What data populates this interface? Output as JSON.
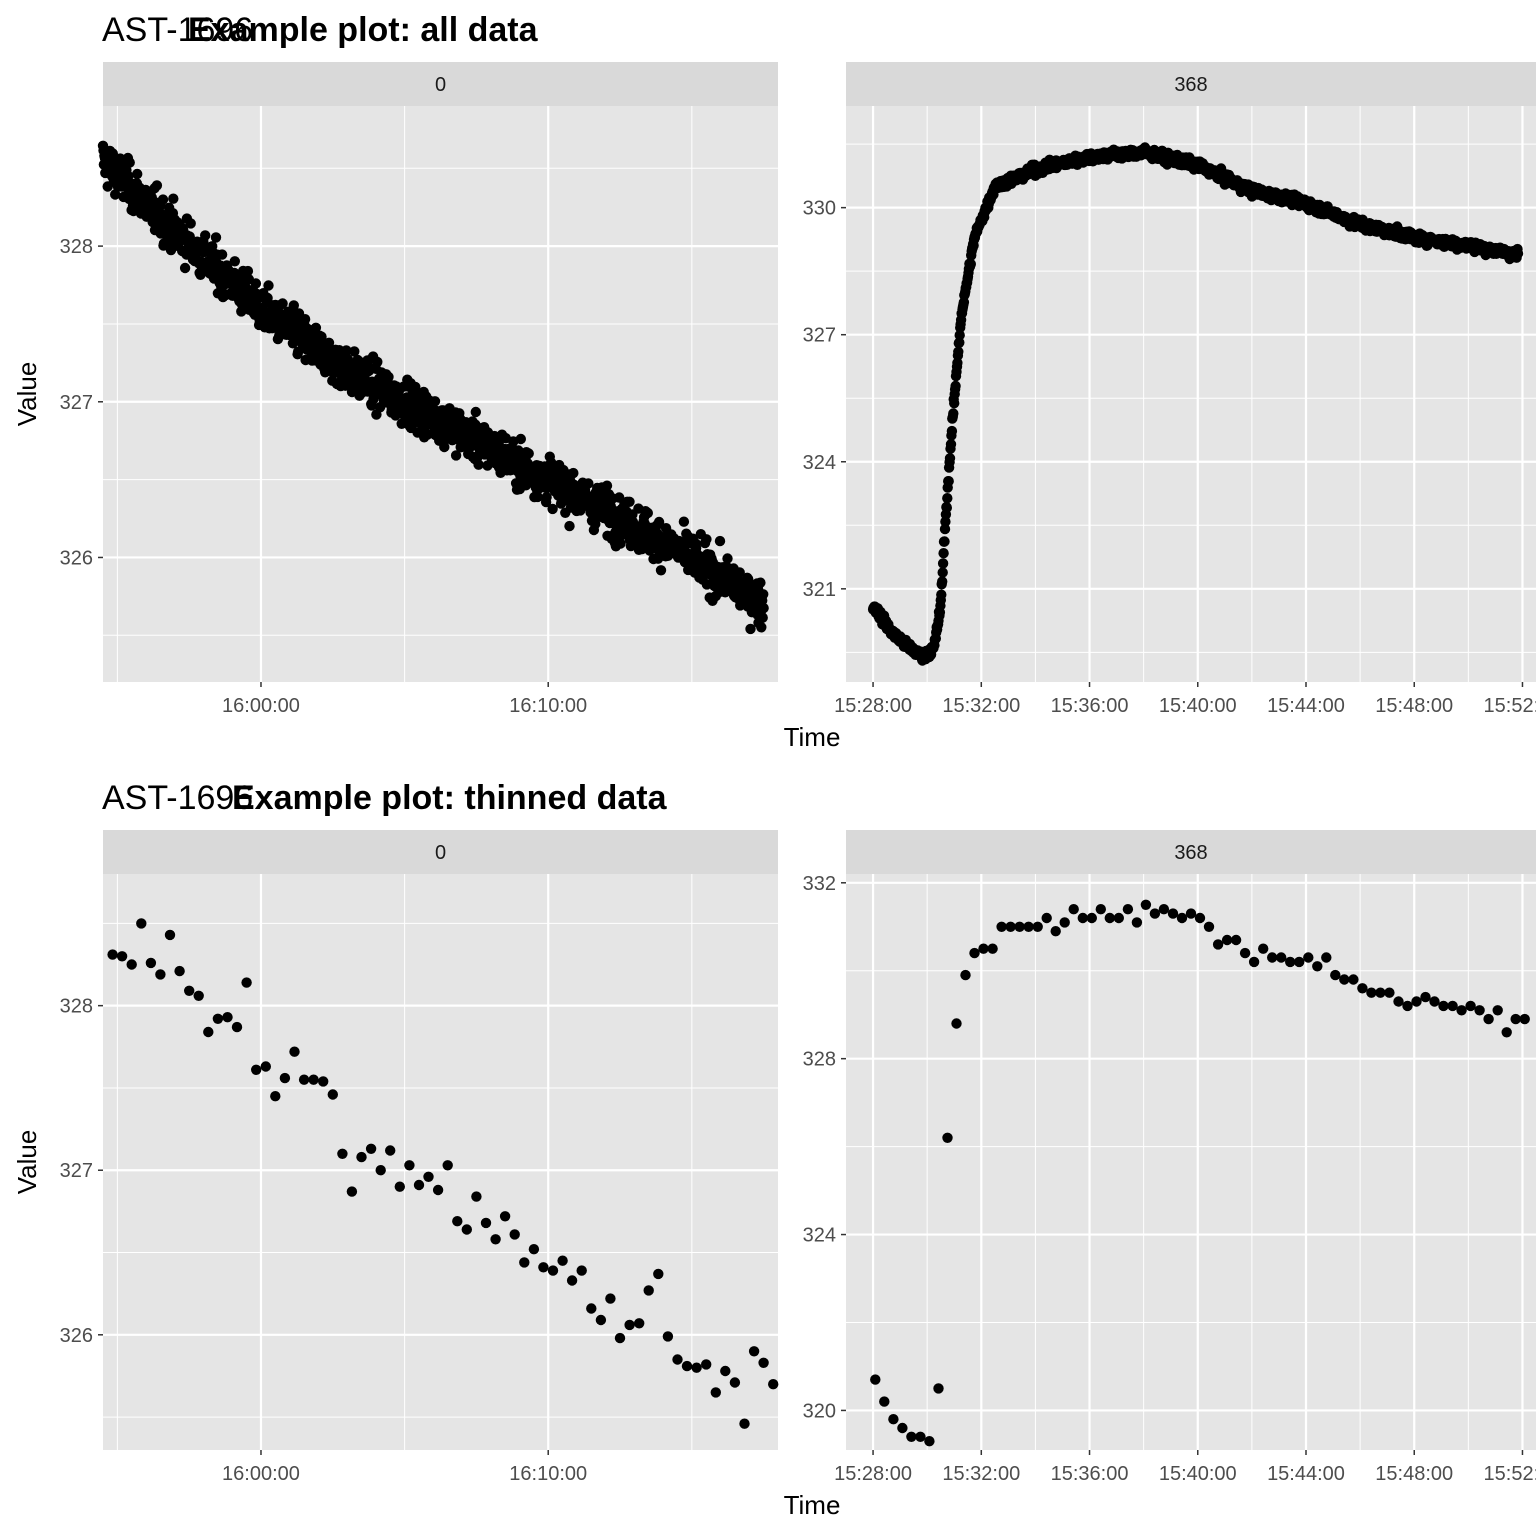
{
  "figure": {
    "title_top_prefix": "AST-1696",
    "title_top": "Example plot: all data",
    "title_bottom_prefix": "AST-1696",
    "title_bottom": "Example plot: thinned data",
    "ylabel": "Value",
    "xlabel": "Time"
  },
  "colors": {
    "panel_bg": "#e5e5e5",
    "strip_bg": "#d9d9d9",
    "grid": "#ffffff",
    "point": "#000000"
  },
  "chart_data": [
    {
      "type": "scatter",
      "title": "Example plot: all data",
      "facet": "0",
      "xlabel": "",
      "ylabel": "Value",
      "xlim": [
        "15:54:30",
        "16:18:00"
      ],
      "ylim": [
        325.2,
        328.9
      ],
      "x_ticks": [
        "16:00:00",
        "16:10:00"
      ],
      "y_ticks": [
        326,
        327,
        328
      ],
      "grid": true,
      "trend": [
        [
          "15:54:30",
          328.55
        ],
        [
          "15:57:00",
          328.1
        ],
        [
          "16:00:00",
          327.6
        ],
        [
          "16:03:00",
          327.2
        ],
        [
          "16:06:00",
          326.9
        ],
        [
          "16:09:00",
          326.6
        ],
        [
          "16:12:00",
          326.3
        ],
        [
          "16:15:00",
          326.0
        ],
        [
          "16:17:30",
          325.7
        ]
      ],
      "n_points": 1410,
      "noise": 0.15
    },
    {
      "type": "scatter",
      "title": "Example plot: all data",
      "facet": "368",
      "xlabel": "Time",
      "ylabel": "",
      "xlim": [
        "15:27:00",
        "15:52:30"
      ],
      "ylim": [
        318.8,
        332.4
      ],
      "x_ticks": [
        "15:28:00",
        "15:32:00",
        "15:36:00",
        "15:40:00",
        "15:44:00",
        "15:48:00",
        "15:52:00"
      ],
      "y_ticks": [
        321,
        324,
        327,
        330
      ],
      "grid": true,
      "trend": [
        [
          "15:28:00",
          320.6
        ],
        [
          "15:28:40",
          320.0
        ],
        [
          "15:29:20",
          319.6
        ],
        [
          "15:29:50",
          319.4
        ],
        [
          "15:30:15",
          319.6
        ],
        [
          "15:30:30",
          320.6
        ],
        [
          "15:30:40",
          322.5
        ],
        [
          "15:30:55",
          324.8
        ],
        [
          "15:31:15",
          327.4
        ],
        [
          "15:31:45",
          329.3
        ],
        [
          "15:32:30",
          330.5
        ],
        [
          "15:34:00",
          330.9
        ],
        [
          "15:36:00",
          331.2
        ],
        [
          "15:38:00",
          331.3
        ],
        [
          "15:40:00",
          331.0
        ],
        [
          "15:42:00",
          330.4
        ],
        [
          "15:44:00",
          330.1
        ],
        [
          "15:46:00",
          329.6
        ],
        [
          "15:48:00",
          329.3
        ],
        [
          "15:50:00",
          329.1
        ],
        [
          "15:51:50",
          328.9
        ]
      ],
      "n_points": 1400,
      "noise": 0.12
    },
    {
      "type": "scatter",
      "title": "Example plot: thinned data",
      "facet": "0",
      "xlabel": "",
      "ylabel": "Value",
      "xlim": [
        "15:54:30",
        "16:18:00"
      ],
      "ylim": [
        325.3,
        328.8
      ],
      "x_ticks": [
        "16:00:00",
        "16:10:00"
      ],
      "y_ticks": [
        326,
        327,
        328
      ],
      "grid": true,
      "points": [
        [
          "15:54:50",
          328.31
        ],
        [
          "15:55:10",
          328.3
        ],
        [
          "15:55:30",
          328.25
        ],
        [
          "15:55:50",
          328.5
        ],
        [
          "15:56:10",
          328.26
        ],
        [
          "15:56:30",
          328.19
        ],
        [
          "15:56:50",
          328.43
        ],
        [
          "15:57:10",
          328.21
        ],
        [
          "15:57:30",
          328.09
        ],
        [
          "15:57:50",
          328.06
        ],
        [
          "15:58:10",
          327.84
        ],
        [
          "15:58:30",
          327.92
        ],
        [
          "15:58:50",
          327.93
        ],
        [
          "15:59:10",
          327.87
        ],
        [
          "15:59:30",
          328.14
        ],
        [
          "15:59:50",
          327.61
        ],
        [
          "16:00:10",
          327.63
        ],
        [
          "16:00:30",
          327.45
        ],
        [
          "16:00:50",
          327.56
        ],
        [
          "16:01:10",
          327.72
        ],
        [
          "16:01:30",
          327.55
        ],
        [
          "16:01:50",
          327.55
        ],
        [
          "16:02:10",
          327.54
        ],
        [
          "16:02:30",
          327.46
        ],
        [
          "16:02:50",
          327.1
        ],
        [
          "16:03:10",
          326.87
        ],
        [
          "16:03:30",
          327.08
        ],
        [
          "16:03:50",
          327.13
        ],
        [
          "16:04:10",
          327.0
        ],
        [
          "16:04:30",
          327.12
        ],
        [
          "16:04:50",
          326.9
        ],
        [
          "16:05:10",
          327.03
        ],
        [
          "16:05:30",
          326.91
        ],
        [
          "16:05:50",
          326.96
        ],
        [
          "16:06:10",
          326.88
        ],
        [
          "16:06:30",
          327.03
        ],
        [
          "16:06:50",
          326.69
        ],
        [
          "16:07:10",
          326.64
        ],
        [
          "16:07:30",
          326.84
        ],
        [
          "16:07:50",
          326.68
        ],
        [
          "16:08:10",
          326.58
        ],
        [
          "16:08:30",
          326.72
        ],
        [
          "16:08:50",
          326.61
        ],
        [
          "16:09:10",
          326.44
        ],
        [
          "16:09:30",
          326.52
        ],
        [
          "16:09:50",
          326.41
        ],
        [
          "16:10:10",
          326.39
        ],
        [
          "16:10:30",
          326.45
        ],
        [
          "16:10:50",
          326.33
        ],
        [
          "16:11:10",
          326.39
        ],
        [
          "16:11:30",
          326.16
        ],
        [
          "16:11:50",
          326.09
        ],
        [
          "16:12:10",
          326.22
        ],
        [
          "16:12:30",
          325.98
        ],
        [
          "16:12:50",
          326.06
        ],
        [
          "16:13:10",
          326.07
        ],
        [
          "16:13:30",
          326.27
        ],
        [
          "16:13:50",
          326.37
        ],
        [
          "16:14:10",
          325.99
        ],
        [
          "16:14:30",
          325.85
        ],
        [
          "16:14:50",
          325.81
        ],
        [
          "16:15:10",
          325.8
        ],
        [
          "16:15:30",
          325.82
        ],
        [
          "16:15:50",
          325.65
        ],
        [
          "16:16:10",
          325.78
        ],
        [
          "16:16:30",
          325.71
        ],
        [
          "16:16:50",
          325.46
        ],
        [
          "16:17:10",
          325.9
        ],
        [
          "16:17:30",
          325.83
        ],
        [
          "16:17:50",
          325.7
        ]
      ]
    },
    {
      "type": "scatter",
      "title": "Example plot: thinned data",
      "facet": "368",
      "xlabel": "Time",
      "ylabel": "",
      "xlim": [
        "15:27:00",
        "15:52:30"
      ],
      "ylim": [
        319.1,
        332.2
      ],
      "x_ticks": [
        "15:28:00",
        "15:32:00",
        "15:36:00",
        "15:40:00",
        "15:44:00",
        "15:48:00",
        "15:52:00"
      ],
      "y_ticks": [
        320,
        324,
        328,
        332
      ],
      "grid": true,
      "points": [
        [
          "15:28:05",
          320.7
        ],
        [
          "15:28:25",
          320.2
        ],
        [
          "15:28:45",
          319.8
        ],
        [
          "15:29:05",
          319.6
        ],
        [
          "15:29:25",
          319.4
        ],
        [
          "15:29:45",
          319.4
        ],
        [
          "15:30:05",
          319.3
        ],
        [
          "15:30:25",
          320.5
        ],
        [
          "15:30:45",
          326.2
        ],
        [
          "15:31:05",
          328.8
        ],
        [
          "15:31:25",
          329.9
        ],
        [
          "15:31:45",
          330.4
        ],
        [
          "15:32:05",
          330.5
        ],
        [
          "15:32:25",
          330.5
        ],
        [
          "15:32:45",
          331.0
        ],
        [
          "15:33:05",
          331.0
        ],
        [
          "15:33:25",
          331.0
        ],
        [
          "15:33:45",
          331.0
        ],
        [
          "15:34:05",
          331.0
        ],
        [
          "15:34:25",
          331.2
        ],
        [
          "15:34:45",
          330.9
        ],
        [
          "15:35:05",
          331.1
        ],
        [
          "15:35:25",
          331.4
        ],
        [
          "15:35:45",
          331.2
        ],
        [
          "15:36:05",
          331.2
        ],
        [
          "15:36:25",
          331.4
        ],
        [
          "15:36:45",
          331.2
        ],
        [
          "15:37:05",
          331.2
        ],
        [
          "15:37:25",
          331.4
        ],
        [
          "15:37:45",
          331.1
        ],
        [
          "15:38:05",
          331.5
        ],
        [
          "15:38:25",
          331.3
        ],
        [
          "15:38:45",
          331.4
        ],
        [
          "15:39:05",
          331.3
        ],
        [
          "15:39:25",
          331.2
        ],
        [
          "15:39:45",
          331.3
        ],
        [
          "15:40:05",
          331.2
        ],
        [
          "15:40:25",
          331.0
        ],
        [
          "15:40:45",
          330.6
        ],
        [
          "15:41:05",
          330.7
        ],
        [
          "15:41:25",
          330.7
        ],
        [
          "15:41:45",
          330.4
        ],
        [
          "15:42:05",
          330.2
        ],
        [
          "15:42:25",
          330.5
        ],
        [
          "15:42:45",
          330.3
        ],
        [
          "15:43:05",
          330.3
        ],
        [
          "15:43:25",
          330.2
        ],
        [
          "15:43:45",
          330.2
        ],
        [
          "15:44:05",
          330.3
        ],
        [
          "15:44:25",
          330.1
        ],
        [
          "15:44:45",
          330.3
        ],
        [
          "15:45:05",
          329.9
        ],
        [
          "15:45:25",
          329.8
        ],
        [
          "15:45:45",
          329.8
        ],
        [
          "15:46:05",
          329.6
        ],
        [
          "15:46:25",
          329.5
        ],
        [
          "15:46:45",
          329.5
        ],
        [
          "15:47:05",
          329.5
        ],
        [
          "15:47:25",
          329.3
        ],
        [
          "15:47:45",
          329.2
        ],
        [
          "15:48:05",
          329.3
        ],
        [
          "15:48:25",
          329.4
        ],
        [
          "15:48:45",
          329.3
        ],
        [
          "15:49:05",
          329.2
        ],
        [
          "15:49:25",
          329.2
        ],
        [
          "15:49:45",
          329.1
        ],
        [
          "15:50:05",
          329.2
        ],
        [
          "15:50:25",
          329.1
        ],
        [
          "15:50:45",
          328.9
        ],
        [
          "15:51:05",
          329.1
        ],
        [
          "15:51:25",
          328.6
        ],
        [
          "15:51:45",
          328.9
        ],
        [
          "15:52:05",
          328.9
        ]
      ]
    }
  ]
}
